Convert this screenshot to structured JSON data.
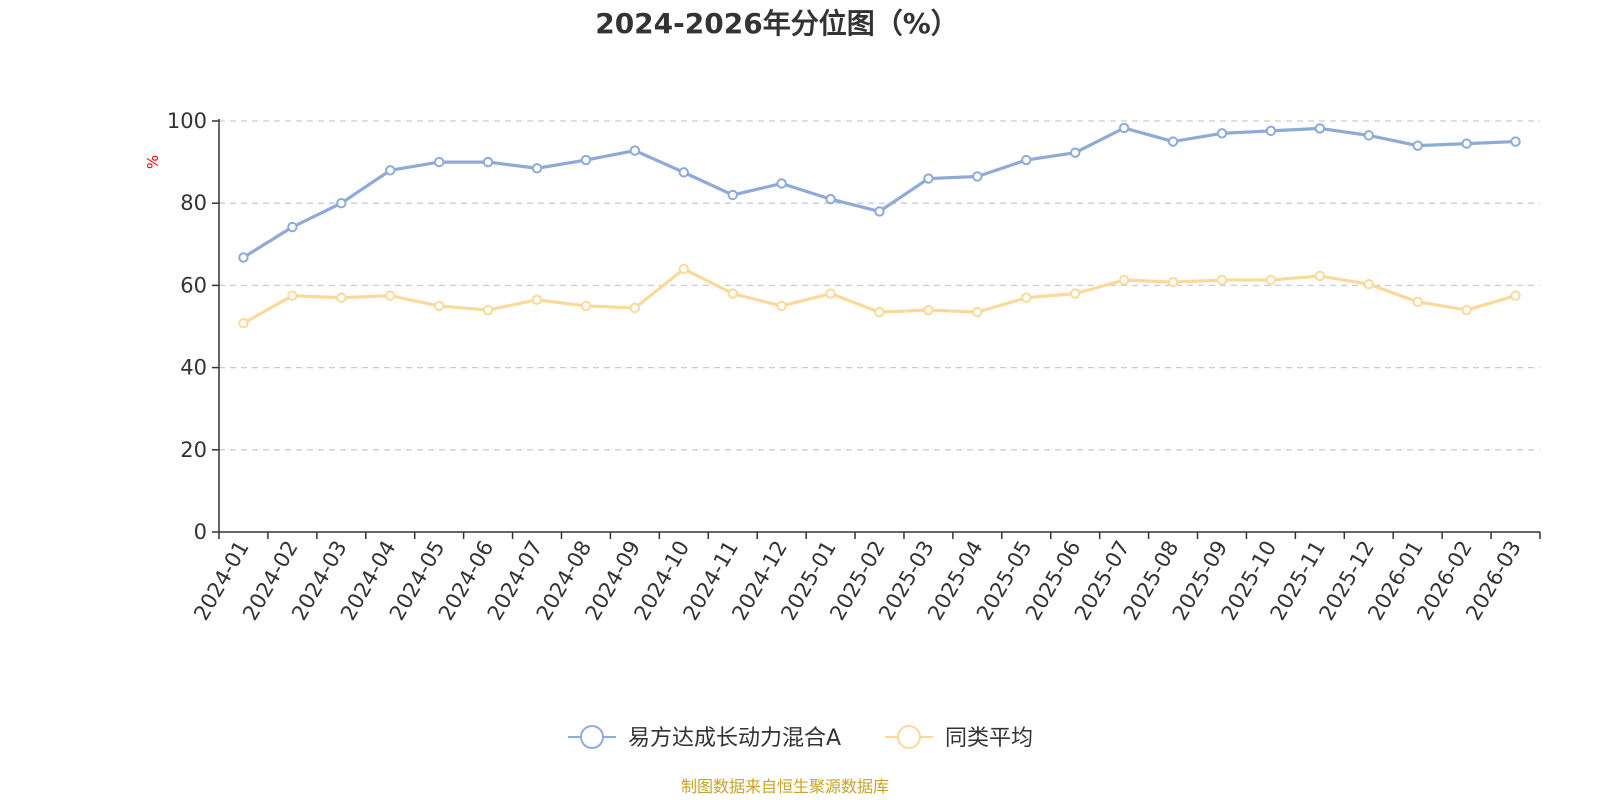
{
  "chart_data": {
    "type": "line",
    "title": "2024-2026年分位图（%）",
    "ylabel": "%",
    "ylim": [
      0,
      100
    ],
    "yticks": [
      0,
      20,
      40,
      60,
      80,
      100
    ],
    "grid": true,
    "legend_position": "bottom",
    "categories": [
      "2024-01",
      "2024-02",
      "2024-03",
      "2024-04",
      "2024-05",
      "2024-06",
      "2024-07",
      "2024-08",
      "2024-09",
      "2024-10",
      "2024-11",
      "2024-12",
      "2025-01",
      "2025-02",
      "2025-03",
      "2025-04",
      "2025-05",
      "2025-06",
      "2025-07",
      "2025-08",
      "2025-09",
      "2025-10",
      "2025-11",
      "2025-12",
      "2026-01",
      "2026-02",
      "2026-03"
    ],
    "series": [
      {
        "name": "易方达成长动力混合A",
        "color": "#8eaad8",
        "values": [
          66.8,
          74.2,
          80.0,
          88.0,
          90.0,
          90.0,
          88.5,
          90.5,
          92.8,
          87.5,
          82.0,
          84.8,
          81.0,
          78.0,
          86.0,
          86.5,
          90.5,
          92.3,
          98.3,
          95.0,
          97.0,
          97.6,
          98.2,
          96.5,
          94.0,
          94.5,
          95.0
        ]
      },
      {
        "name": "同类平均",
        "color": "#fcd99b",
        "values": [
          50.8,
          57.5,
          57.0,
          57.5,
          55.0,
          54.0,
          56.5,
          55.0,
          54.5,
          64.0,
          58.0,
          55.0,
          58.0,
          53.5,
          54.0,
          53.5,
          57.0,
          58.0,
          61.3,
          60.8,
          61.3,
          61.3,
          62.3,
          60.3,
          56.0,
          54.0,
          57.5
        ]
      }
    ]
  },
  "footer": {
    "source": "制图数据来自恒生聚源数据库"
  }
}
